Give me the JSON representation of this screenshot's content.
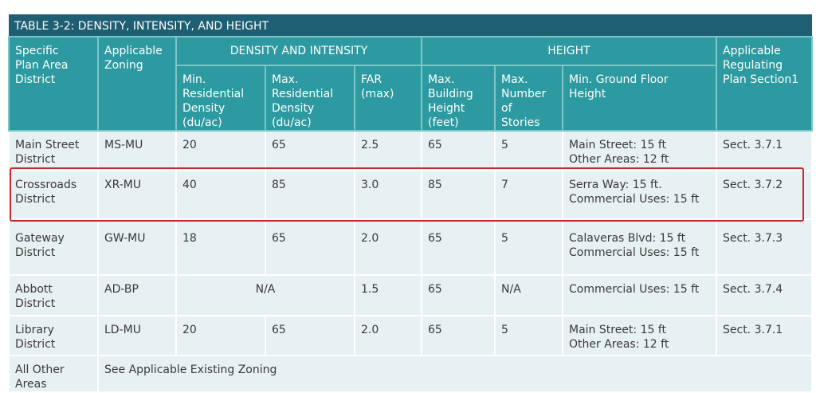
{
  "table": {
    "title": "TABLE 3-2: DENSITY, INTENSITY, AND HEIGHT",
    "header": {
      "specific": [
        "Specific",
        "Plan Area",
        "District"
      ],
      "zoning": [
        "Applicable",
        "Zoning"
      ],
      "density": "DENSITY AND INTENSITY",
      "height": "HEIGHT",
      "section": [
        "Applicable",
        "Regulating",
        "Plan Section1"
      ],
      "sub": [
        [
          "Min.",
          "Residential",
          "Density",
          "(du/ac)"
        ],
        [
          "Max.",
          "Residential",
          "Density",
          "(du/ac)"
        ],
        [
          "FAR",
          "(max)"
        ],
        [
          "Max.",
          "Building",
          "Height",
          "(feet)"
        ],
        [
          "Max.",
          "Number",
          "of",
          "Stories"
        ],
        [
          "Min. Ground Floor",
          "Height"
        ]
      ]
    },
    "rows": [
      [
        [
          "Main Street",
          "District"
        ],
        "MS-MU",
        "20",
        "65",
        "2.5",
        "65",
        "5",
        [
          "Main Street: 15 ft",
          "Other Areas: 12 ft"
        ],
        "Sect. 3.7.1"
      ],
      [
        [
          "Crossroads",
          "District"
        ],
        "XR-MU",
        "40",
        "85",
        "3.0",
        "85",
        "7",
        [
          "Serra Way: 15 ft.",
          "Commercial Uses: 15 ft"
        ],
        "Sect. 3.7.2"
      ],
      [
        [
          "Gateway",
          "District"
        ],
        "GW-MU",
        "18",
        "65",
        "2.0",
        "65",
        "5",
        [
          "Calaveras Blvd: 15 ft",
          "Commercial Uses: 15 ft"
        ],
        "Sect.  3.7.3"
      ],
      [
        [
          "Abbott",
          "District"
        ],
        "AD-BP",
        "N/A",
        "1.5",
        "65",
        "N/A",
        "Commercial Uses: 15 ft",
        "Sect.  3.7.4"
      ],
      [
        [
          "Library",
          "District"
        ],
        "LD-MU",
        "20",
        "65",
        "2.0",
        "65",
        "5",
        [
          "Main Street: 15 ft",
          "Other Areas: 12 ft"
        ],
        "Sect.  3.7.1"
      ],
      [
        [
          "All Other",
          "Areas"
        ],
        "See Applicable Existing Zoning"
      ]
    ]
  }
}
